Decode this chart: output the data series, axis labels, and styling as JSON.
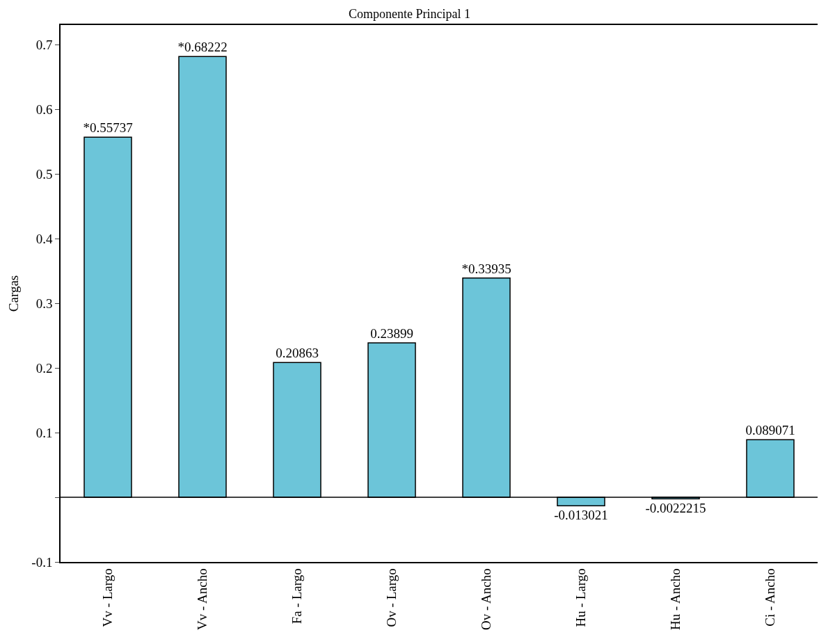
{
  "chart_data": {
    "type": "bar",
    "title": "Componente Principal 1",
    "ylabel": "Cargas",
    "categories": [
      "Vv - Largo",
      "Vv - Ancho",
      "Fa - Largo",
      "Ov - Largo",
      "Ov - Ancho",
      "Hu - Largo",
      "Hu - Ancho",
      "Ci - Ancho"
    ],
    "values": [
      0.55737,
      0.68222,
      0.20863,
      0.23899,
      0.33935,
      -0.013021,
      -0.0022215,
      0.089071
    ],
    "value_labels": [
      "*0.55737",
      "*0.68222",
      "0.20863",
      "0.23899",
      "*0.33935",
      "-0.013021",
      "-0.0022215",
      "0.089071"
    ],
    "color": "#6cc5d9",
    "ylim": [
      -0.1,
      0.731
    ],
    "yticks": [
      -0.1,
      {
        "value": 0,
        "label": null
      },
      0.1,
      0.2,
      0.3,
      0.4,
      0.5,
      0.6,
      0.7
    ],
    "ref_lines": [
      {
        "axis": "y",
        "value": 0,
        "color": "#000000"
      }
    ],
    "grid": false
  }
}
